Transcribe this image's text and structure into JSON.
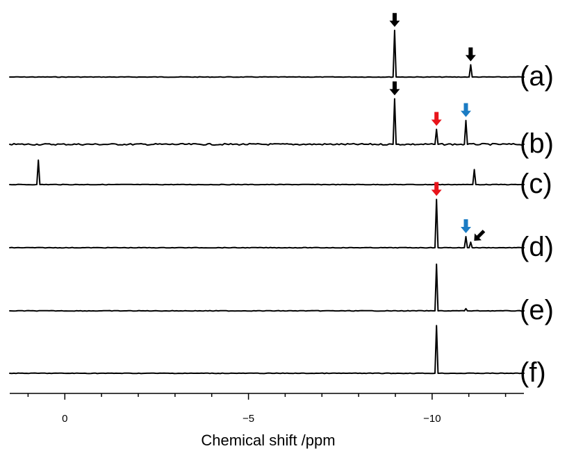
{
  "chart_data": {
    "type": "line",
    "xlabel": "Chemical shift /ppm",
    "xlim": [
      1.5,
      -12.5
    ],
    "reversed_x_axis": true,
    "x_ticks": [
      0,
      -5,
      -10
    ],
    "x_tick_labels": [
      "0",
      "−5",
      "−10"
    ],
    "arrow_colors": {
      "black": "#000000",
      "red": "#e8141b",
      "blue": "#1b7cc4"
    },
    "series": [
      {
        "name": "(a)",
        "peaks": [
          {
            "x": -8.98,
            "height": 0.84
          },
          {
            "x": -11.05,
            "height": 0.22
          }
        ],
        "arrows": [
          {
            "x": -8.98,
            "color": "black"
          },
          {
            "x": -11.05,
            "color": "black"
          }
        ]
      },
      {
        "name": "(b)",
        "peaks": [
          {
            "x": -8.98,
            "height": 0.82
          },
          {
            "x": -10.12,
            "height": 0.27
          },
          {
            "x": -10.92,
            "height": 0.43
          }
        ],
        "arrows": [
          {
            "x": -8.98,
            "color": "black"
          },
          {
            "x": -10.12,
            "color": "red"
          },
          {
            "x": -10.92,
            "color": "blue"
          }
        ]
      },
      {
        "name": "(c)",
        "peaks": [
          {
            "x": 0.72,
            "height": 0.44
          },
          {
            "x": -11.15,
            "height": 0.27
          }
        ],
        "arrows": []
      },
      {
        "name": "(d)",
        "peaks": [
          {
            "x": -10.12,
            "height": 0.87
          },
          {
            "x": -10.92,
            "height": 0.2
          },
          {
            "x": -11.05,
            "height": 0.1
          }
        ],
        "arrows": [
          {
            "x": -10.12,
            "color": "red"
          },
          {
            "x": -10.92,
            "color": "blue"
          },
          {
            "x": -11.05,
            "color": "black",
            "diagonal": true
          }
        ]
      },
      {
        "name": "(e)",
        "peaks": [
          {
            "x": -10.12,
            "height": 0.84
          },
          {
            "x": -10.92,
            "height": 0.04
          }
        ],
        "arrows": []
      },
      {
        "name": "(f)",
        "peaks": [
          {
            "x": -10.12,
            "height": 0.86
          }
        ],
        "arrows": []
      }
    ]
  }
}
